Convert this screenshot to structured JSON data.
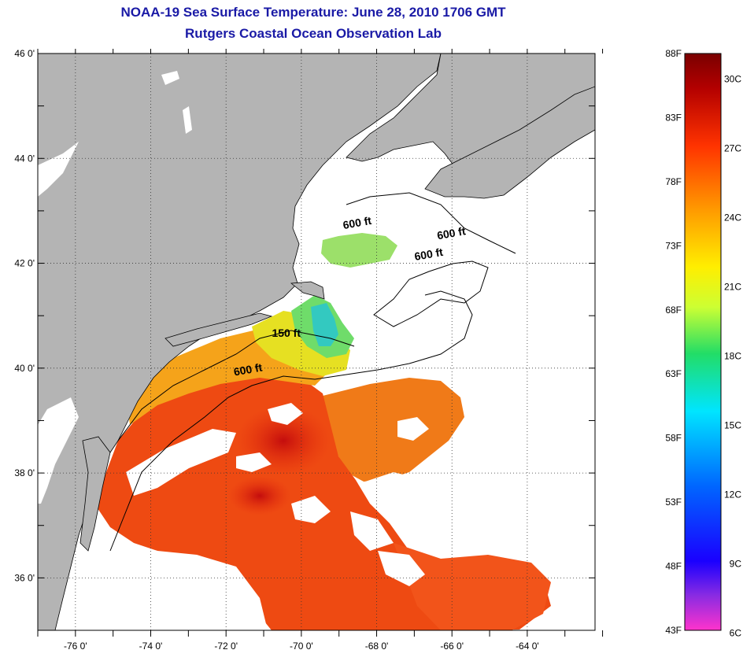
{
  "title": "NOAA-19 Sea Surface Temperature:  June 28, 2010 1706 GMT",
  "subtitle": "Rutgers Coastal Ocean Observation Lab",
  "map": {
    "lat_labels": [
      "46 0'",
      "44 0'",
      "42 0'",
      "40 0'",
      "38 0'",
      "36 0'"
    ],
    "lon_labels": [
      "-76 0'",
      "-74 0'",
      "-72 0'",
      "-70 0'",
      "-68 0'",
      "-66 0'",
      "-64 0'"
    ],
    "lat_range": [
      35,
      46
    ],
    "lon_range": [
      -77,
      -62.2
    ],
    "grid": "dotted",
    "contour_labels": [
      {
        "text": "600 ft",
        "lon": -68.5,
        "lat": 42.7
      },
      {
        "text": "600 ft",
        "lon": -66.0,
        "lat": 42.5
      },
      {
        "text": "600 ft",
        "lon": -66.6,
        "lat": 42.1
      },
      {
        "text": "150 ft",
        "lon": -70.4,
        "lat": 40.6
      },
      {
        "text": "600 ft",
        "lon": -71.4,
        "lat": 39.9
      }
    ],
    "colors": {
      "land": "#b4b4b4",
      "no_data": "#ffffff",
      "coast": "#000000"
    }
  },
  "colorbar": {
    "f_labels": [
      "88F",
      "83F",
      "78F",
      "73F",
      "68F",
      "63F",
      "58F",
      "53F",
      "48F",
      "43F"
    ],
    "c_labels": [
      "30C",
      "27C",
      "24C",
      "21C",
      "18C",
      "15C",
      "12C",
      "9C",
      "6C"
    ],
    "f_range": [
      43,
      88
    ],
    "colors": [
      "#ff33cc",
      "#8a2be2",
      "#1a00ff",
      "#0066ff",
      "#00e5ff",
      "#22dd66",
      "#ccff33",
      "#ffee00",
      "#ff9900",
      "#ff3300",
      "#b30000",
      "#7a0000"
    ]
  }
}
